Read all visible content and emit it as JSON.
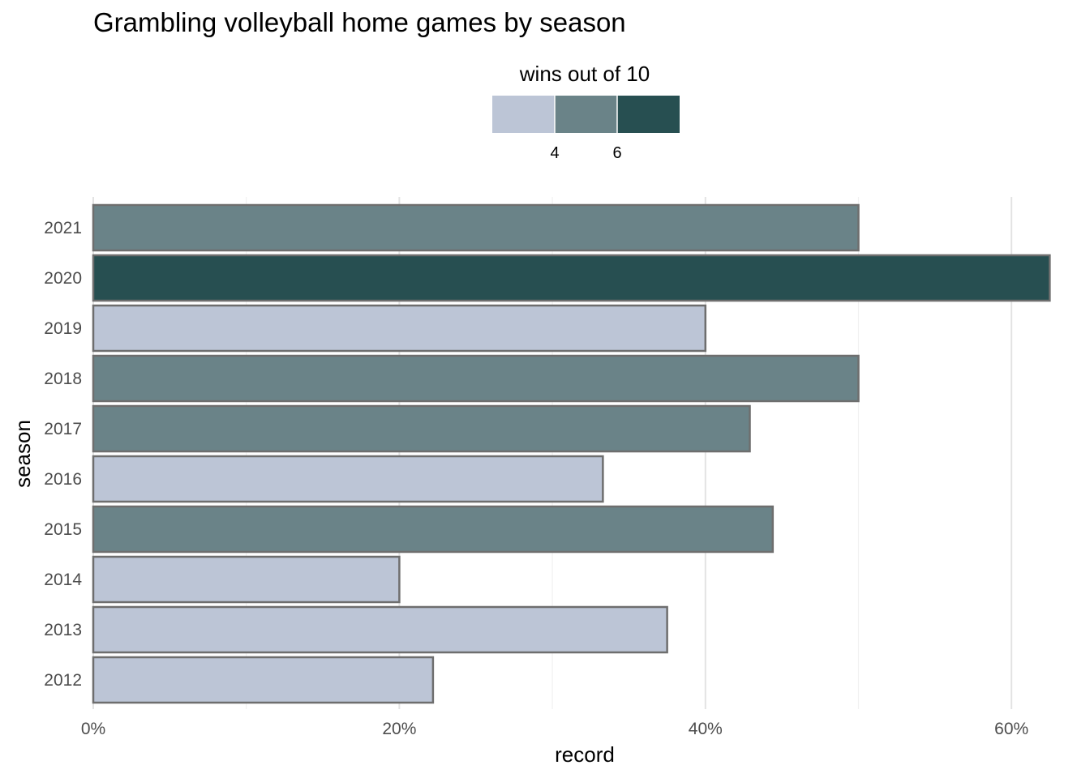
{
  "chart_data": {
    "type": "bar",
    "orientation": "horizontal",
    "title": "Grambling volleyball home games by season",
    "xlabel": "record",
    "ylabel": "season",
    "xlim": [
      0,
      0.625
    ],
    "x_ticks": [
      {
        "value": 0,
        "label": "0%"
      },
      {
        "value": 0.2,
        "label": "20%"
      },
      {
        "value": 0.4,
        "label": "40%"
      },
      {
        "value": 0.6,
        "label": "60%"
      }
    ],
    "grid": true,
    "categories": [
      "2021",
      "2020",
      "2019",
      "2018",
      "2017",
      "2016",
      "2015",
      "2014",
      "2013",
      "2012"
    ],
    "values": [
      0.5,
      0.625,
      0.4,
      0.5,
      0.429,
      0.333,
      0.444,
      0.2,
      0.375,
      0.222
    ],
    "fill_level": [
      2,
      3,
      1,
      2,
      2,
      1,
      2,
      1,
      1,
      1
    ],
    "legend": {
      "title": "wins out of 10",
      "position": "top",
      "ticks": [
        "4",
        "6"
      ],
      "colors": [
        "#bcc5d6",
        "#6a8388",
        "#274f51"
      ]
    },
    "bar_outline_color": "#6e6e6e"
  }
}
